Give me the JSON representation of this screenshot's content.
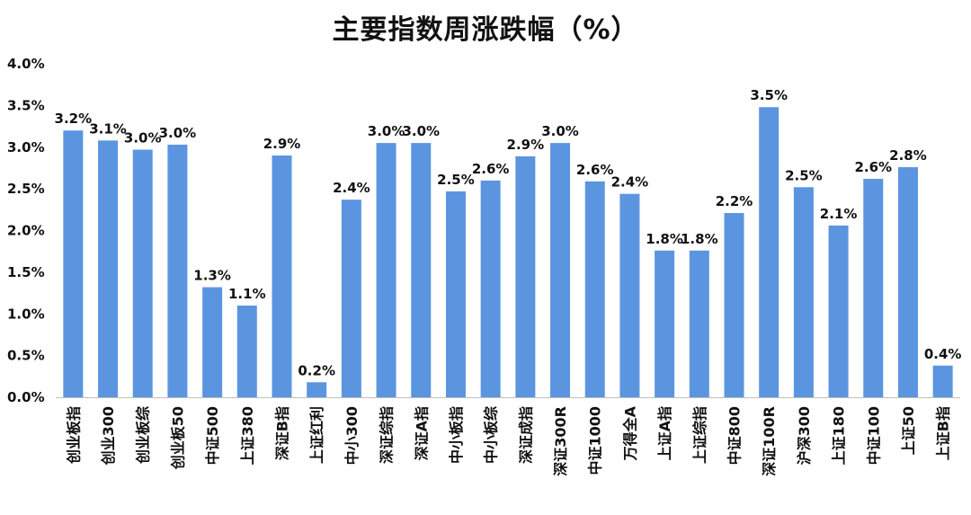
{
  "chart_data": {
    "type": "bar",
    "title": "主要指数周涨跌幅（%）",
    "xlabel": "",
    "ylabel": "",
    "ylim": [
      0,
      4.0
    ],
    "y_ticks": [
      "0.0%",
      "0.5%",
      "1.0%",
      "1.5%",
      "2.0%",
      "2.5%",
      "3.0%",
      "3.5%",
      "4.0%"
    ],
    "grid": false,
    "legend": "none",
    "bar_color": "#5B95E0",
    "categories": [
      "创业板指",
      "创业300",
      "创业板综",
      "创业板50",
      "中证500",
      "上证380",
      "深证B指",
      "上证红利",
      "中小300",
      "深证综指",
      "深证A指",
      "中小板指",
      "中小板综",
      "深证成指",
      "深证300R",
      "中证1000",
      "万得全A",
      "上证A指",
      "上证综指",
      "中证800",
      "深证100R",
      "沪深300",
      "上证180",
      "中证100",
      "上证50",
      "上证B指"
    ],
    "values": [
      3.2,
      3.08,
      2.97,
      3.03,
      1.32,
      1.1,
      2.9,
      0.18,
      2.37,
      3.05,
      3.05,
      2.47,
      2.6,
      2.89,
      3.05,
      2.59,
      2.44,
      1.76,
      1.76,
      2.21,
      3.48,
      2.52,
      2.06,
      2.62,
      2.76,
      0.38
    ],
    "data_labels": [
      "3.2%",
      "3.1%",
      "3.0%",
      "3.0%",
      "1.3%",
      "1.1%",
      "2.9%",
      "0.2%",
      "2.4%",
      "3.0%",
      "3.0%",
      "2.5%",
      "2.6%",
      "2.9%",
      "3.0%",
      "2.6%",
      "2.4%",
      "1.8%",
      "1.8%",
      "2.2%",
      "3.5%",
      "2.5%",
      "2.1%",
      "2.6%",
      "2.8%",
      "0.4%"
    ]
  }
}
